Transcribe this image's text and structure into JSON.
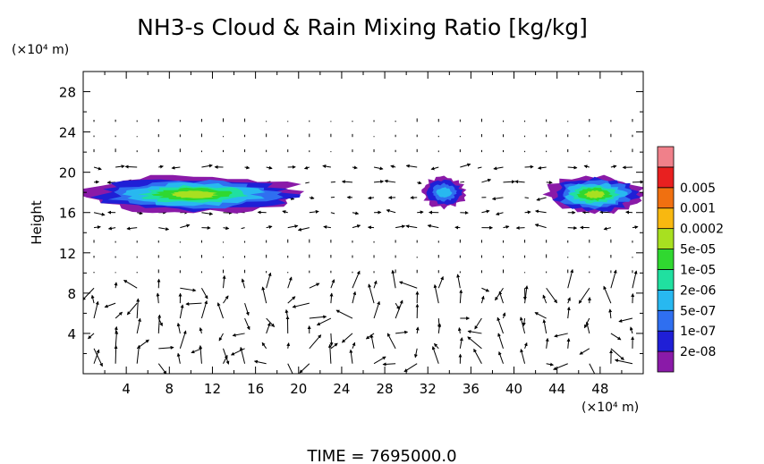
{
  "chart_data": {
    "type": "heatmap",
    "title": "NH3-s Cloud & Rain Mixing Ratio [kg/kg]",
    "ylabel": "Height",
    "y_unit": "(×10⁴ m)",
    "x_unit": "(×10⁴ m)",
    "time_label": "TIME = 7695000.0",
    "xlim": [
      0,
      52
    ],
    "ylim": [
      0,
      30
    ],
    "x_ticks": [
      4,
      8,
      12,
      16,
      20,
      24,
      28,
      32,
      36,
      40,
      44,
      48
    ],
    "y_ticks": [
      4,
      8,
      12,
      16,
      20,
      24,
      28
    ],
    "colorbar": {
      "labels": [
        "2e-08",
        "1e-07",
        "5e-07",
        "2e-06",
        "1e-05",
        "5e-05",
        "0.0002",
        "0.001",
        "0.005"
      ],
      "colors": [
        "#8a1aa8",
        "#1f1fd6",
        "#2f6ff0",
        "#28b8f0",
        "#20e0a0",
        "#30d830",
        "#a8e020",
        "#f8b810",
        "#f07010",
        "#e82020",
        "#f0808a"
      ]
    },
    "regions": [
      {
        "name": "west_cloud",
        "x": [
          0,
          20.5
        ],
        "y": [
          16,
          19.6
        ],
        "peak_level": 6
      },
      {
        "name": "central_cloud",
        "x": [
          31.5,
          35.5
        ],
        "y": [
          16.5,
          19.5
        ],
        "peak_level": 3
      },
      {
        "name": "east_cloud",
        "x": [
          43,
          52
        ],
        "y": [
          16,
          19.6
        ],
        "peak_level": 6
      }
    ],
    "grid": false
  }
}
